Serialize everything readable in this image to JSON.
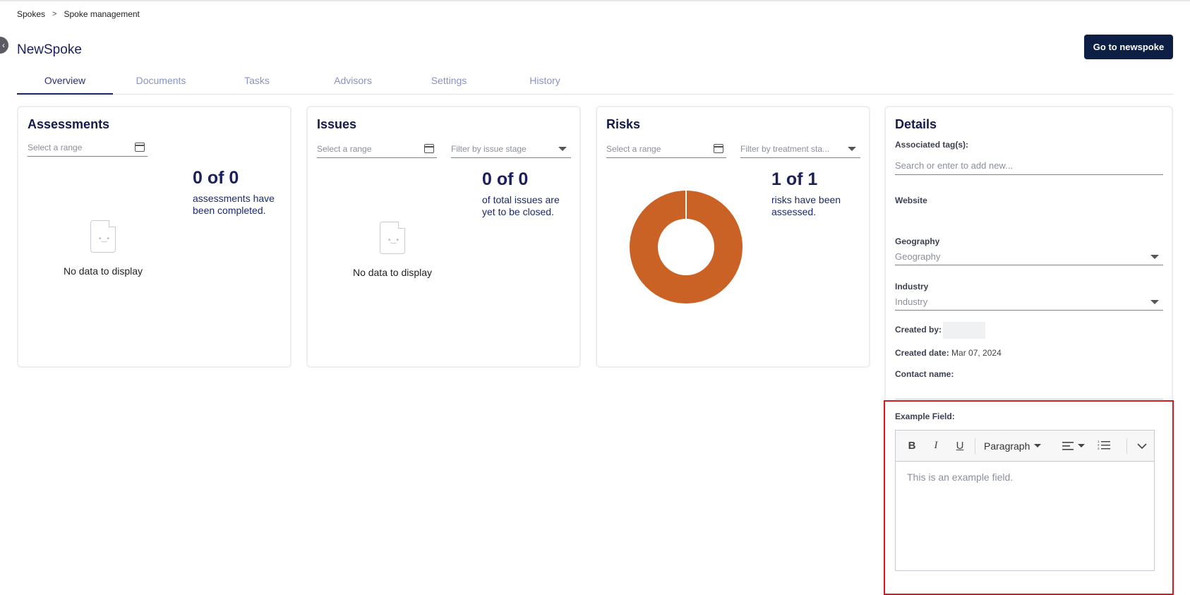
{
  "breadcrumb": {
    "items": [
      "Spokes",
      "Spoke management"
    ],
    "separator": ">"
  },
  "page": {
    "title": "NewSpoke",
    "back_icon": "chevron-left-icon"
  },
  "header": {
    "go_button_label": "Go to newspoke"
  },
  "tabs": [
    {
      "label": "Overview",
      "active": true
    },
    {
      "label": "Documents",
      "active": false
    },
    {
      "label": "Tasks",
      "active": false
    },
    {
      "label": "Advisors",
      "active": false
    },
    {
      "label": "Settings",
      "active": false
    },
    {
      "label": "History",
      "active": false
    }
  ],
  "assessments": {
    "title": "Assessments",
    "range_placeholder": "Select a range",
    "stat": "0 of 0",
    "stat_text": "assessments have been completed.",
    "empty_message": "No data to display"
  },
  "issues": {
    "title": "Issues",
    "range_placeholder": "Select a range",
    "filter_placeholder": "Filter by issue stage",
    "stat": "0 of 0",
    "stat_text": "of total issues are yet to be closed.",
    "empty_message": "No data to display"
  },
  "risks": {
    "title": "Risks",
    "range_placeholder": "Select a range",
    "filter_placeholder": "Filter by treatment sta...",
    "stat": "1 of 1",
    "stat_text": "risks have been assessed.",
    "donut": {
      "assessed": 1,
      "total": 1,
      "color": "#c96224"
    }
  },
  "details": {
    "title": "Details",
    "tags_label": "Associated tag(s):",
    "tags_placeholder": "Search or enter to add new...",
    "website_label": "Website",
    "geography_label": "Geography",
    "geography_placeholder": "Geography",
    "industry_label": "Industry",
    "industry_placeholder": "Industry",
    "created_by_label": "Created by:",
    "created_date_label": "Created date:",
    "created_date_value": "Mar 07, 2024",
    "contact_name_label": "Contact name:",
    "example_field_label": "Example Field:",
    "editor": {
      "bold": "B",
      "italic": "I",
      "underline": "U",
      "block_format": "Paragraph",
      "content": "This is an example field."
    }
  },
  "colors": {
    "primary": "#0d1f44",
    "accent": "#c96224",
    "highlight": "#d71920"
  }
}
